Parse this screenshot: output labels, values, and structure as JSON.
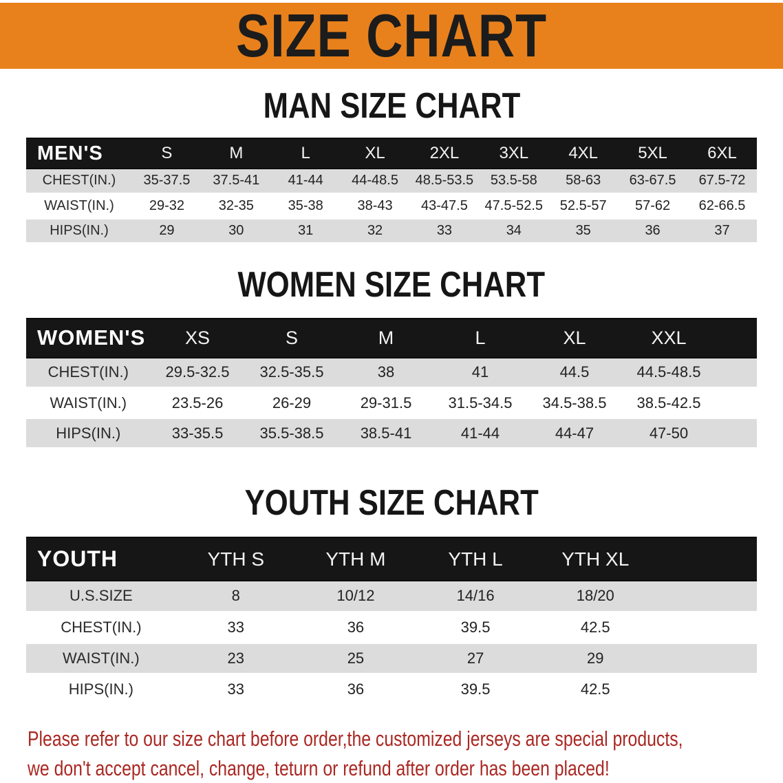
{
  "banner": {
    "title": "SIZE CHART"
  },
  "sections": {
    "men": {
      "heading": "MAN SIZE CHART",
      "table": {
        "label": "MEN'S",
        "columns": [
          "S",
          "M",
          "L",
          "XL",
          "2XL",
          "3XL",
          "4XL",
          "5XL",
          "6XL"
        ],
        "rows": [
          {
            "label": "CHEST(IN.)",
            "values": [
              "35-37.5",
              "37.5-41",
              "41-44",
              "44-48.5",
              "48.5-53.5",
              "53.5-58",
              "58-63",
              "63-67.5",
              "67.5-72"
            ]
          },
          {
            "label": "WAIST(IN.)",
            "values": [
              "29-32",
              "32-35",
              "35-38",
              "38-43",
              "43-47.5",
              "47.5-52.5",
              "52.5-57",
              "57-62",
              "62-66.5"
            ]
          },
          {
            "label": "HIPS(IN.)",
            "values": [
              "29",
              "30",
              "31",
              "32",
              "33",
              "34",
              "35",
              "36",
              "37"
            ]
          }
        ]
      }
    },
    "women": {
      "heading": "WOMEN SIZE CHART",
      "table": {
        "label": "WOMEN'S",
        "columns": [
          "XS",
          "S",
          "M",
          "L",
          "XL",
          "XXL"
        ],
        "rows": [
          {
            "label": "CHEST(IN.)",
            "values": [
              "29.5-32.5",
              "32.5-35.5",
              "38",
              "41",
              "44.5",
              "44.5-48.5"
            ]
          },
          {
            "label": "WAIST(IN.)",
            "values": [
              "23.5-26",
              "26-29",
              "29-31.5",
              "31.5-34.5",
              "34.5-38.5",
              "38.5-42.5"
            ]
          },
          {
            "label": "HIPS(IN.)",
            "values": [
              "33-35.5",
              "35.5-38.5",
              "38.5-41",
              "41-44",
              "44-47",
              "47-50"
            ]
          }
        ]
      }
    },
    "youth": {
      "heading": "YOUTH SIZE CHART",
      "table": {
        "label": "YOUTH",
        "columns": [
          "YTH S",
          "YTH M",
          "YTH L",
          "YTH XL"
        ],
        "rows": [
          {
            "label": "U.S.SIZE",
            "values": [
              "8",
              "10/12",
              "14/16",
              "18/20"
            ]
          },
          {
            "label": "CHEST(IN.)",
            "values": [
              "33",
              "36",
              "39.5",
              "42.5"
            ]
          },
          {
            "label": "WAIST(IN.)",
            "values": [
              "23",
              "25",
              "27",
              "29"
            ]
          },
          {
            "label": "HIPS(IN.)",
            "values": [
              "33",
              "36",
              "39.5",
              "42.5"
            ]
          }
        ]
      }
    }
  },
  "footer_note": {
    "line1": "Please refer to our size chart before order,the customized jerseys are special products,",
    "line2": "we don't accept cancel, change, teturn or refund after order has been placed!"
  },
  "colors": {
    "accent_orange": "#E8811C",
    "header_bar_black": "#161616",
    "row_stripe_gray": "#DCDCDC",
    "note_red": "#AA2823",
    "title_text": "#1C1C1C"
  }
}
